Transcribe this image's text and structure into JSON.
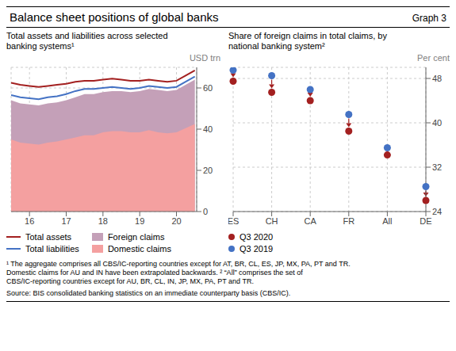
{
  "title": "Balance sheet positions of global banks",
  "annotations": [
    "Graph 3",
    "¹  The aggregate comprises all CBS/IC-reporting countries except for AT, BR, CL, ES, JP, MX, PA, PT and TR.\nDomestic claims for AU and IN have been extrapolated backwards.  ²  “All” comprises the set of\nCBS/IC-reporting countries except for AU, BR, CL, IN, JP, MX, PA, PT and TR.",
    "Source: BIS consolidated banking statistics on an immediate counterparty basis (CBS/IC)."
  ],
  "chart_data": [
    {
      "type": "area",
      "subtitle": "Total assets and liabilities across selected\nbanking systems¹",
      "ylabel": "USD trn",
      "x": [
        2015.5,
        2015.75,
        2016.0,
        2016.25,
        2016.5,
        2016.75,
        2017.0,
        2017.25,
        2017.5,
        2017.75,
        2018.0,
        2018.25,
        2018.5,
        2018.75,
        2019.0,
        2019.25,
        2019.5,
        2019.75,
        2020.0,
        2020.25,
        2020.5
      ],
      "xlim": [
        2015.5,
        2020.55
      ],
      "xticks": [
        {
          "value": 2016,
          "label": "16"
        },
        {
          "value": 2017,
          "label": "17"
        },
        {
          "value": 2018,
          "label": "18"
        },
        {
          "value": 2019,
          "label": "19"
        },
        {
          "value": 2020,
          "label": "20"
        }
      ],
      "ylim": [
        0,
        70
      ],
      "yticks": [
        0,
        20,
        40,
        60
      ],
      "grid": true,
      "legend": "bottom",
      "series": [
        {
          "name": "Total assets",
          "type": "line",
          "color": "#a32020",
          "values": [
            62.5,
            61.5,
            61.0,
            60.5,
            61.0,
            61.5,
            62.0,
            63.0,
            63.5,
            63.5,
            64.0,
            64.5,
            64.0,
            63.5,
            63.5,
            64.0,
            63.5,
            63.0,
            63.5,
            66.0,
            68.5
          ]
        },
        {
          "name": "Total liabilities",
          "type": "line",
          "color": "#4472c4",
          "values": [
            56.5,
            55.5,
            55.0,
            54.5,
            55.5,
            56.0,
            57.0,
            58.5,
            59.5,
            59.5,
            60.0,
            60.5,
            60.0,
            59.5,
            60.0,
            61.0,
            60.5,
            60.0,
            60.5,
            63.0,
            65.5
          ]
        },
        {
          "name": "Foreign claims",
          "type": "area",
          "color": "#c4a0b8",
          "values": [
            54.0,
            52.5,
            52.0,
            51.5,
            52.5,
            53.0,
            54.0,
            55.5,
            57.0,
            57.0,
            58.0,
            58.5,
            58.5,
            58.0,
            58.5,
            59.5,
            59.0,
            58.5,
            59.0,
            61.5,
            64.0
          ]
        },
        {
          "name": "Domestic claims",
          "type": "area",
          "color": "#f4a0a0",
          "values": [
            35.0,
            33.5,
            33.0,
            32.5,
            33.5,
            34.0,
            35.0,
            36.0,
            37.0,
            37.0,
            38.5,
            39.0,
            39.0,
            38.5,
            38.5,
            39.5,
            38.5,
            38.0,
            38.5,
            40.5,
            42.5
          ]
        }
      ]
    },
    {
      "type": "scatter",
      "subtitle": "Share of foreign claims in total claims, by\nnational banking system²",
      "ylabel": "Per cent",
      "categories": [
        "ES",
        "CH",
        "CA",
        "FR",
        "All",
        "DE"
      ],
      "ylim": [
        24,
        50
      ],
      "yticks": [
        24,
        32,
        40,
        48
      ],
      "grid": true,
      "legend": "bottom",
      "series": [
        {
          "name": "Q3 2020",
          "color": "#a32020",
          "marker": "circle",
          "values": [
            47.5,
            45.5,
            44.0,
            38.5,
            34.2,
            26.0
          ]
        },
        {
          "name": "Q3 2019",
          "color": "#4472c4",
          "marker": "circle",
          "values": [
            49.5,
            48.5,
            46.0,
            41.5,
            35.5,
            28.5
          ]
        }
      ]
    }
  ]
}
